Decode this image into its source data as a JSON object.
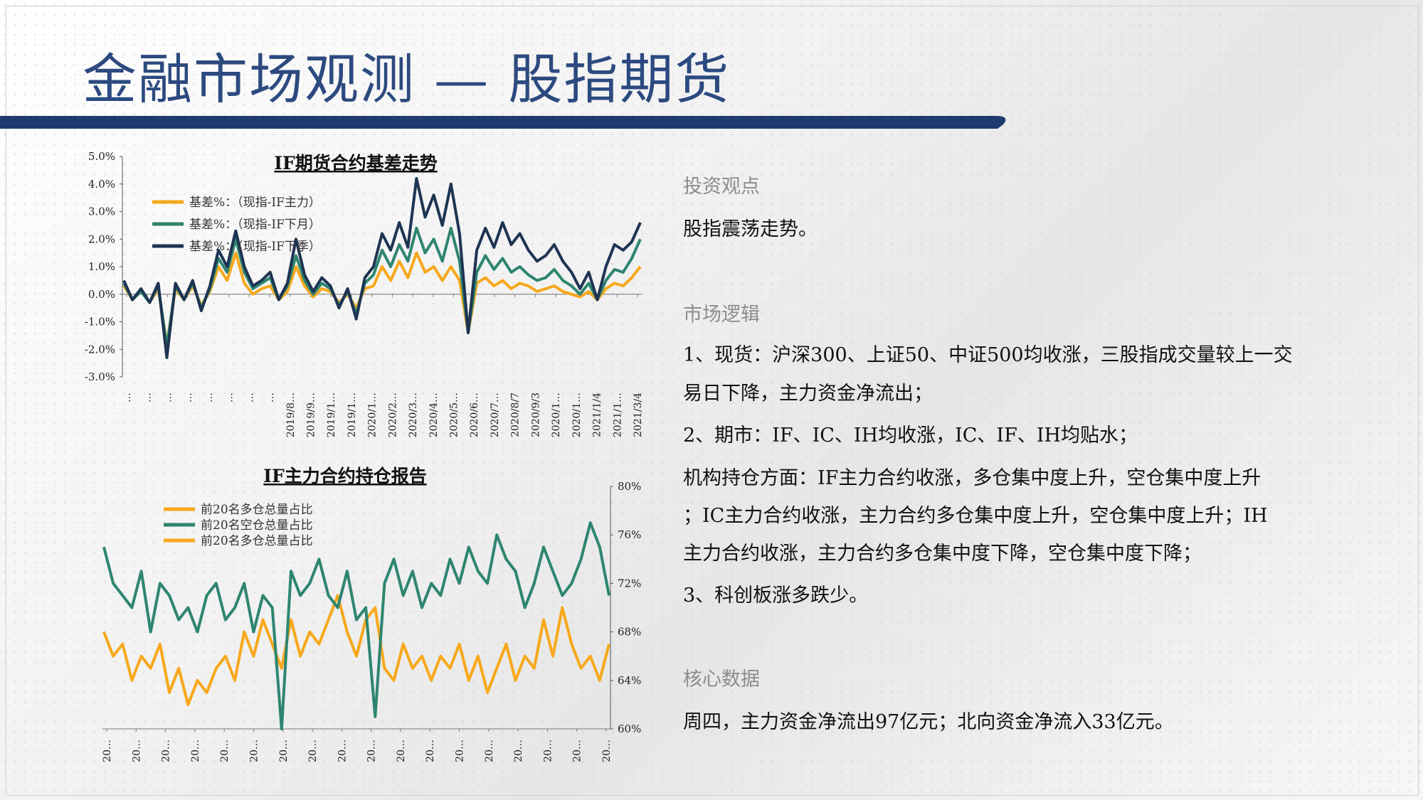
{
  "page": {
    "title": "金融市场观测 — 股指期货",
    "colors": {
      "brand": "#1f3a6e",
      "title": "#2c4a7f",
      "orange": "#f7a81b",
      "teal": "#2e8570",
      "navy": "#1e3452"
    }
  },
  "right": {
    "investment_heading": "投资观点",
    "investment_text": "股指震荡走势。",
    "logic_heading": "市场逻辑",
    "logic_lines": [
      "1、现货：沪深300、上证50、中证500均收涨，三股指成交量较上一交",
      "易日下降，主力资金净流出；",
      "2、期市：IF、IC、IH均收涨，IC、IF、IH均贴水；",
      "机构持仓方面：IF主力合约收涨，多仓集中度上升，空仓集中度上升",
      "；IC主力合约收涨，主力合约多仓集中度上升，空仓集中度上升；IH",
      "主力合约收涨，主力合约多仓集中度下降，空仓集中度下降；",
      "3、科创板涨多跌少。"
    ],
    "core_heading": "核心数据",
    "core_text": "周四，主力资金净流出97亿元；北向资金净流入33亿元。"
  },
  "chart_data": [
    {
      "type": "line",
      "title": "IF期货合约基差走势",
      "ylim": [
        -3.0,
        5.0
      ],
      "yticks": [
        "5.0%",
        "4.0%",
        "3.0%",
        "2.0%",
        "1.0%",
        "0.0%",
        "-1.0%",
        "-2.0%",
        "-3.0%"
      ],
      "xticks": [
        "…",
        "…",
        "…",
        "…",
        "…",
        "…",
        "…",
        "…",
        "2019/8…",
        "2019/9…",
        "2019/1…",
        "2019/1…",
        "2020/1…",
        "2020/2…",
        "2020/3…",
        "2020/4…",
        "2020/5…",
        "2020/6…",
        "2020/7…",
        "2020/8/7",
        "2020/9/3",
        "2020/1…",
        "2020/1…",
        "2021/1/4",
        "2021/1…",
        "2021/3/4"
      ],
      "legend": "top-left",
      "series": [
        {
          "name": "基差%：（现指-IF主力）",
          "color": "#f7a81b",
          "values": [
            0.3,
            -0.2,
            0.1,
            -0.3,
            0.2,
            -1.8,
            0.2,
            -0.2,
            0.3,
            -0.4,
            0.1,
            1.0,
            0.5,
            1.5,
            0.4,
            0.0,
            0.2,
            0.3,
            -0.2,
            0.1,
            1.0,
            0.3,
            -0.1,
            0.2,
            0.1,
            -0.3,
            0.0,
            -0.5,
            0.2,
            0.3,
            1.0,
            0.5,
            1.2,
            0.6,
            1.5,
            0.8,
            1.0,
            0.5,
            1.0,
            0.5,
            -1.4,
            0.4,
            0.6,
            0.3,
            0.5,
            0.2,
            0.4,
            0.3,
            0.1,
            0.2,
            0.3,
            0.1,
            0.0,
            -0.1,
            0.1,
            -0.2,
            0.2,
            0.4,
            0.3,
            0.6,
            1.0
          ]
        },
        {
          "name": "基差%：（现指-IF下月）",
          "color": "#2e8570",
          "values": [
            0.4,
            -0.2,
            0.1,
            -0.3,
            0.3,
            -1.9,
            0.3,
            -0.2,
            0.4,
            -0.5,
            0.2,
            1.3,
            0.8,
            2.0,
            0.8,
            0.2,
            0.4,
            0.6,
            -0.2,
            0.3,
            1.4,
            0.5,
            0.0,
            0.4,
            0.2,
            -0.4,
            0.1,
            -0.7,
            0.4,
            0.7,
            1.6,
            1.0,
            1.8,
            1.2,
            2.4,
            1.5,
            2.0,
            1.2,
            2.4,
            1.2,
            -1.4,
            0.8,
            1.4,
            0.9,
            1.3,
            0.8,
            1.0,
            0.7,
            0.5,
            0.6,
            0.9,
            0.5,
            0.3,
            0.0,
            0.4,
            -0.2,
            0.5,
            0.9,
            0.8,
            1.3,
            2.0
          ]
        },
        {
          "name": "基差%：（现指-IF下季）",
          "color": "#1e3452",
          "values": [
            0.5,
            -0.2,
            0.2,
            -0.3,
            0.4,
            -2.3,
            0.4,
            -0.2,
            0.5,
            -0.6,
            0.3,
            1.6,
            1.0,
            2.3,
            1.0,
            0.3,
            0.5,
            0.8,
            -0.2,
            0.4,
            2.0,
            0.7,
            0.1,
            0.6,
            0.3,
            -0.5,
            0.2,
            -0.9,
            0.6,
            1.0,
            2.2,
            1.6,
            2.6,
            1.7,
            4.2,
            2.8,
            3.6,
            2.5,
            4.0,
            2.2,
            -1.4,
            1.6,
            2.4,
            1.7,
            2.6,
            1.8,
            2.2,
            1.6,
            1.2,
            1.4,
            1.8,
            1.2,
            0.8,
            0.2,
            0.8,
            -0.2,
            1.0,
            1.8,
            1.6,
            1.9,
            2.6
          ]
        }
      ]
    },
    {
      "type": "line",
      "title": "IF主力合约持仓报告",
      "ylim": [
        60,
        80
      ],
      "yticks": [
        "80%",
        "76%",
        "72%",
        "68%",
        "64%",
        "60%"
      ],
      "xticks": [
        "20…",
        "20…",
        "20…",
        "20…",
        "20…",
        "20…",
        "20…",
        "20…",
        "20…",
        "20…",
        "20…",
        "20…",
        "20…",
        "20…",
        "20…",
        "20…",
        "20…",
        "20…"
      ],
      "legend": "top-left",
      "series": [
        {
          "name": "前20名多仓总量占比",
          "color": "#f7a81b",
          "values": [
            68,
            66,
            67,
            64,
            66,
            65,
            67,
            63,
            65,
            62,
            64,
            63,
            65,
            66,
            64,
            68,
            66,
            69,
            67,
            65,
            69,
            66,
            68,
            67,
            69,
            71,
            68,
            66,
            69,
            70,
            65,
            64,
            67,
            65,
            66,
            64,
            66,
            65,
            67,
            64,
            66,
            63,
            65,
            67,
            64,
            66,
            65,
            69,
            66,
            70,
            67,
            65,
            66,
            64,
            67
          ]
        },
        {
          "name": "前20名空仓总量占比",
          "color": "#2e8570",
          "values": [
            75,
            72,
            71,
            70,
            73,
            68,
            72,
            71,
            69,
            70,
            68,
            71,
            72,
            69,
            70,
            72,
            68,
            71,
            70,
            60,
            73,
            71,
            72,
            74,
            71,
            70,
            73,
            69,
            70,
            61,
            72,
            74,
            71,
            73,
            70,
            72,
            71,
            74,
            72,
            75,
            73,
            72,
            76,
            74,
            73,
            70,
            72,
            75,
            73,
            71,
            72,
            74,
            77,
            75,
            71
          ]
        },
        {
          "name": "前20名多仓总量占比",
          "color": "#f7a81b",
          "values": []
        }
      ]
    }
  ]
}
